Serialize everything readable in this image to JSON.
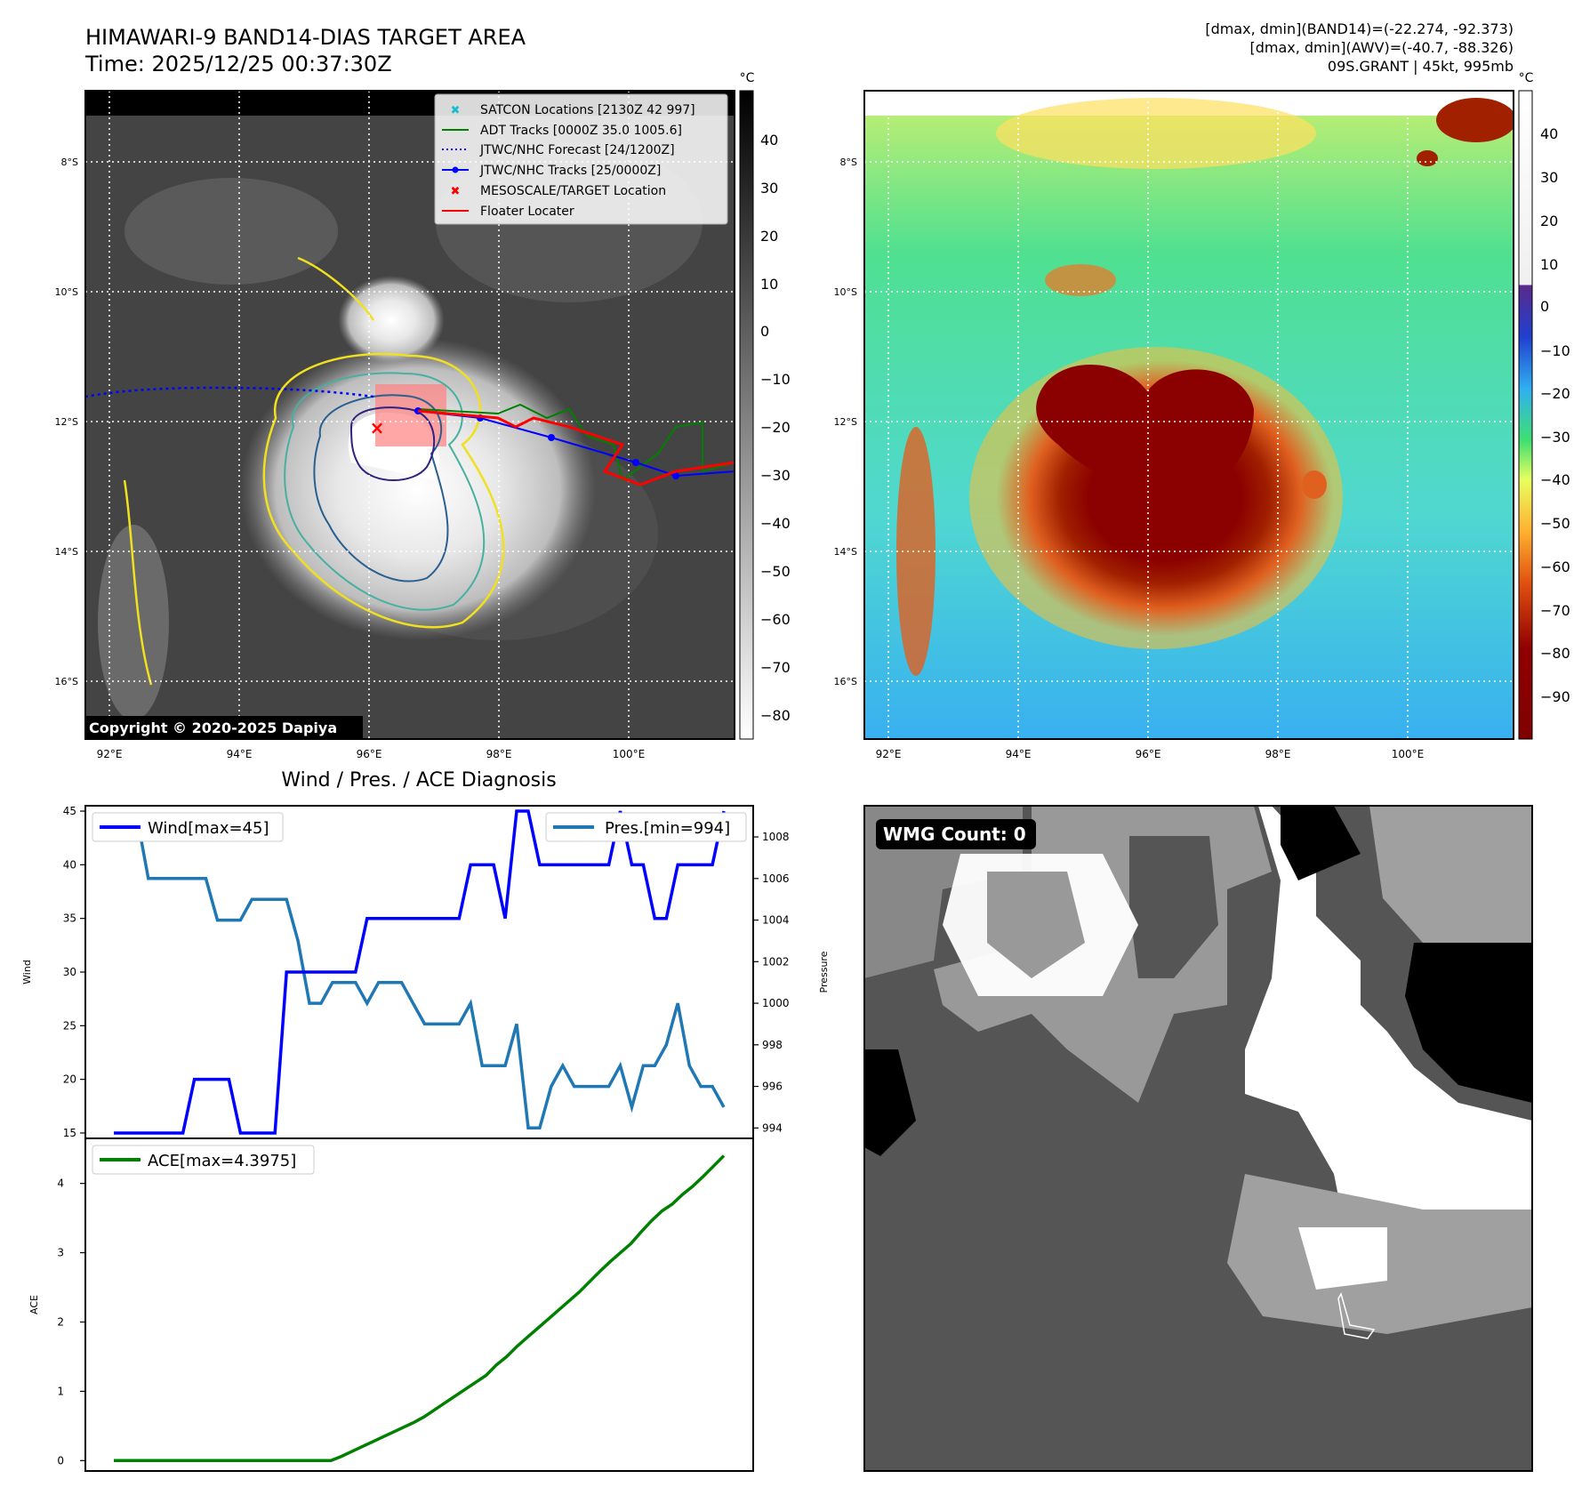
{
  "header": {
    "title": "HIMAWARI-9 BAND14-DIAS TARGET AREA",
    "time": "Time: 2025/12/25 00:37:30Z",
    "band14_range": "[dmax, dmin](BAND14)=(-22.274, -92.373)",
    "awv_range": "[dmax, dmin](AWV)=(-40.7, -88.326)",
    "storm": "09S.GRANT | 45kt, 995mb"
  },
  "map": {
    "lat_labels": [
      "8°S",
      "10°S",
      "12°S",
      "14°S",
      "16°S"
    ],
    "lon_labels": [
      "92°E",
      "94°E",
      "96°E",
      "98°E",
      "100°E"
    ],
    "copyright": "Copyright © 2020-2025 Dapiya",
    "legend": [
      "SATCON Locations [2130Z 42 997]",
      "ADT Tracks [0000Z 35.0 1005.6]",
      "JTWC/NHC Forecast [24/1200Z]",
      "JTWC/NHC Tracks [25/0000Z]",
      "MESOSCALE/TARGET Location",
      "Floater Locater"
    ],
    "gray_colorbar": {
      "unit": "°C",
      "ticks": [
        "40",
        "30",
        "20",
        "10",
        "0",
        "−10",
        "−20",
        "−30",
        "−40",
        "−50",
        "−60",
        "−70",
        "−80"
      ]
    },
    "color_colorbar": {
      "unit": "°C",
      "ticks": [
        "40",
        "30",
        "20",
        "10",
        "0",
        "−10",
        "−20",
        "−30",
        "−40",
        "−50",
        "−60",
        "−70",
        "−80",
        "−90"
      ]
    },
    "colors": {
      "legend_satcon": "#17becf",
      "legend_adt": "#008000",
      "legend_forecast": "#0000ff",
      "legend_tracks": "#0000ff",
      "legend_target": "#ff0000",
      "legend_floater": "#ff0000"
    }
  },
  "wmg": {
    "label": "WMG Count: 0"
  },
  "chart_data": [
    {
      "type": "line",
      "title": "Wind / Pres. / ACE Diagnosis",
      "ylabel": "Wind",
      "ylabel_right": "Pressure",
      "ylim": [
        14.5,
        45.5
      ],
      "ylim_right": [
        993.5,
        1009.5
      ],
      "yticks": [
        "45",
        "40",
        "35",
        "30",
        "25",
        "20",
        "15"
      ],
      "yticks_right": [
        "1008",
        "1006",
        "1004",
        "1002",
        "1000",
        "998",
        "996",
        "994"
      ],
      "series": [
        {
          "name": "Wind[max=45]",
          "color": "#0000ff",
          "values": [
            15,
            15,
            15,
            15,
            15,
            15,
            15,
            20,
            20,
            20,
            20,
            15,
            15,
            15,
            15,
            30,
            30,
            30,
            30,
            30,
            30,
            30,
            35,
            35,
            35,
            35,
            35,
            35,
            35,
            35,
            35,
            40,
            40,
            40,
            35,
            45,
            45,
            40,
            40,
            40,
            40,
            40,
            40,
            40,
            45,
            40,
            40,
            35,
            35,
            40,
            40,
            40,
            40,
            45
          ]
        },
        {
          "name": "Pres.[min=994]",
          "color": "#1f77b4",
          "values": [
            1009,
            1009,
            1009,
            1006,
            1006,
            1006,
            1006,
            1006,
            1006,
            1004,
            1004,
            1004,
            1005,
            1005,
            1005,
            1005,
            1003,
            1000,
            1000,
            1001,
            1001,
            1001,
            1000,
            1001,
            1001,
            1001,
            1000,
            999,
            999,
            999,
            999,
            1000,
            997,
            997,
            997,
            999,
            994,
            994,
            996,
            997,
            996,
            996,
            996,
            996,
            997,
            995,
            997,
            997,
            998,
            1000,
            997,
            996,
            996,
            995
          ]
        }
      ]
    },
    {
      "type": "line",
      "ylabel": "ACE",
      "ylim": [
        -0.15,
        4.65
      ],
      "yticks": [
        "4",
        "3",
        "2",
        "1",
        "0"
      ],
      "series": [
        {
          "name": "ACE[max=4.3975]",
          "color": "#008000",
          "values": [
            0,
            0,
            0,
            0,
            0,
            0,
            0,
            0,
            0,
            0,
            0,
            0,
            0,
            0,
            0,
            0,
            0,
            0,
            0,
            0,
            0,
            0,
            0.06,
            0.13,
            0.2,
            0.27,
            0.34,
            0.41,
            0.48,
            0.55,
            0.63,
            0.73,
            0.83,
            0.93,
            1.03,
            1.13,
            1.23,
            1.38,
            1.5,
            1.65,
            1.78,
            1.91,
            2.04,
            2.17,
            2.3,
            2.43,
            2.58,
            2.73,
            2.87,
            3.0,
            3.13,
            3.3,
            3.46,
            3.6,
            3.7,
            3.84,
            3.96,
            4.1,
            4.25,
            4.4
          ]
        }
      ]
    }
  ]
}
